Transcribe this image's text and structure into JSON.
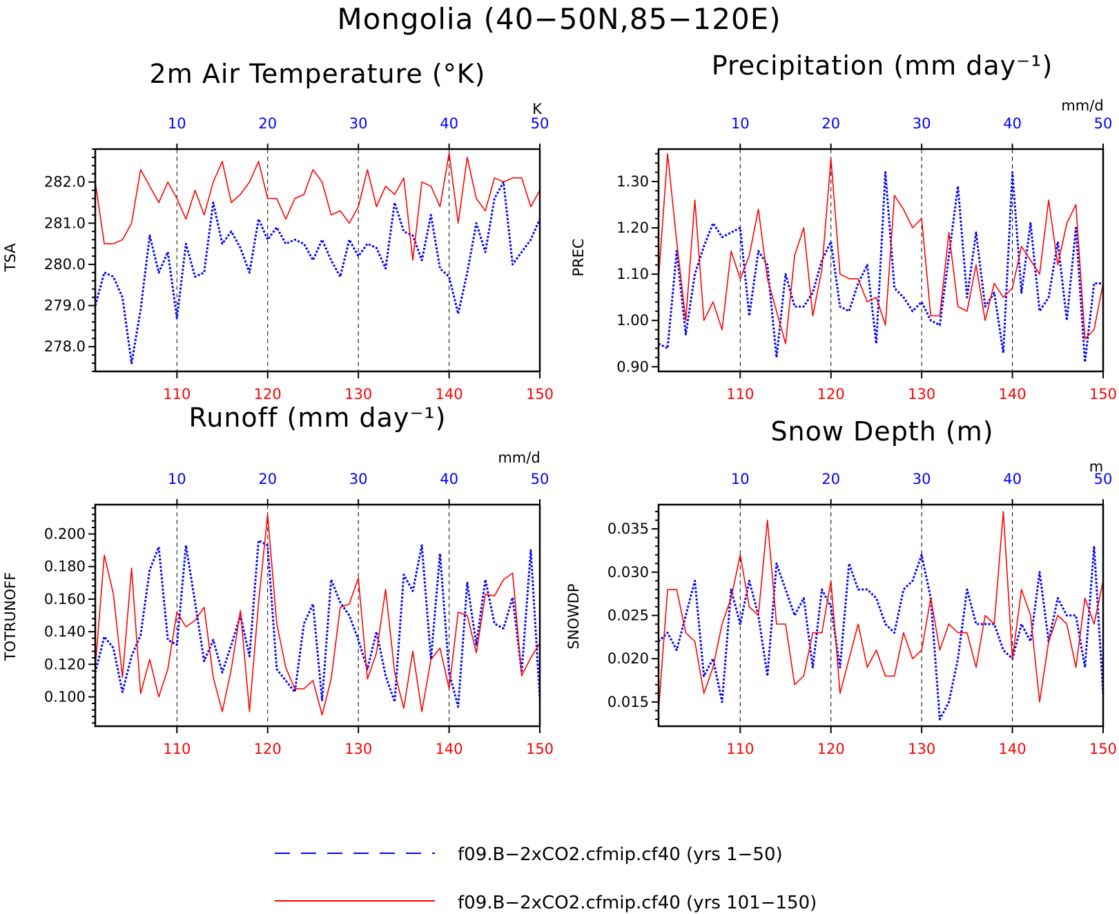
{
  "figure": {
    "title": "Mongolia (40−50N,85−120E)",
    "colors": {
      "red": "#ff0000",
      "blue": "#0000ff",
      "black": "#000000"
    }
  },
  "legend": [
    {
      "label": "f09.B−2xCO2.cfmip.cf40 (yrs 1−50)",
      "color": "#0000ff",
      "style": "dashed"
    },
    {
      "label": "f09.B−2xCO2.cfmip.cf40 (yrs 101−150)",
      "color": "#ff0000",
      "style": "solid"
    }
  ],
  "chart_data": [
    {
      "type": "line",
      "title": "2m Air Temperature (°K)",
      "ylabel": "TSA",
      "units": "K",
      "ylim": [
        277.4,
        282.8
      ],
      "yticks": [
        278,
        279,
        280,
        281,
        282
      ],
      "ytick_labels": [
        "278.0",
        "279.0",
        "280.0",
        "281.0",
        "282.0"
      ],
      "x_bottom": {
        "range": [
          101,
          150
        ],
        "ticks": [
          110,
          120,
          130,
          140,
          150
        ]
      },
      "x_top": {
        "range": [
          1,
          50
        ],
        "ticks": [
          10,
          20,
          30,
          40,
          50
        ]
      },
      "series": [
        {
          "color": "#0000ff",
          "dash": true,
          "values": [
            279.0,
            279.8,
            279.7,
            279.2,
            277.6,
            278.9,
            280.7,
            279.8,
            280.3,
            278.7,
            280.5,
            279.7,
            279.8,
            281.5,
            280.5,
            280.8,
            280.4,
            279.8,
            281.1,
            280.6,
            280.9,
            280.5,
            280.6,
            280.5,
            280.1,
            280.6,
            280.1,
            279.7,
            280.6,
            280.2,
            280.5,
            280.4,
            279.9,
            281.5,
            280.8,
            280.7,
            280.1,
            281.2,
            279.9,
            279.7,
            278.8,
            279.8,
            281.0,
            280.3,
            281.6,
            282.0,
            280.0,
            280.3,
            280.6,
            281.1
          ]
        },
        {
          "color": "#ff0000",
          "dash": false,
          "values": [
            282.0,
            280.5,
            280.5,
            280.6,
            281.0,
            282.3,
            281.9,
            281.5,
            282.0,
            281.6,
            281.1,
            281.8,
            281.2,
            282.0,
            282.5,
            281.5,
            281.7,
            282.0,
            282.5,
            281.6,
            281.6,
            281.1,
            281.6,
            281.7,
            282.3,
            282.0,
            281.2,
            281.3,
            281.0,
            281.4,
            282.3,
            281.4,
            281.9,
            281.7,
            282.1,
            280.1,
            282.0,
            281.9,
            281.4,
            282.7,
            281.0,
            282.6,
            281.6,
            281.3,
            282.1,
            282.0,
            282.1,
            282.1,
            281.4,
            281.8
          ]
        }
      ]
    },
    {
      "type": "line",
      "title": "Precipitation (mm day⁻¹)",
      "ylabel": "PREC",
      "units": "mm/d",
      "ylim": [
        0.89,
        1.37
      ],
      "yticks": [
        0.9,
        1.0,
        1.1,
        1.2,
        1.3
      ],
      "ytick_labels": [
        "0.90",
        "1.00",
        "1.10",
        "1.20",
        "1.30"
      ],
      "x_bottom": {
        "range": [
          101,
          150
        ],
        "ticks": [
          110,
          120,
          130,
          140,
          150
        ]
      },
      "x_top": {
        "range": [
          1,
          50
        ],
        "ticks": [
          10,
          20,
          30,
          40,
          50
        ]
      },
      "series": [
        {
          "color": "#0000ff",
          "dash": true,
          "values": [
            0.95,
            0.94,
            1.15,
            0.97,
            1.1,
            1.16,
            1.21,
            1.18,
            1.19,
            1.2,
            1.01,
            1.15,
            1.12,
            0.92,
            1.1,
            1.03,
            1.03,
            1.06,
            1.13,
            1.17,
            1.03,
            1.02,
            1.08,
            1.12,
            0.95,
            1.32,
            1.07,
            1.05,
            1.02,
            1.04,
            1.0,
            0.99,
            1.14,
            1.29,
            1.05,
            1.19,
            1.03,
            1.06,
            0.93,
            1.32,
            1.06,
            1.21,
            1.02,
            1.05,
            1.17,
            1.0,
            1.2,
            0.91,
            1.08,
            1.08
          ]
        },
        {
          "color": "#ff0000",
          "dash": false,
          "values": [
            1.09,
            1.36,
            1.17,
            1.0,
            1.26,
            1.0,
            1.04,
            0.98,
            1.15,
            1.09,
            1.14,
            1.24,
            1.09,
            1.02,
            0.95,
            1.14,
            1.2,
            1.01,
            1.11,
            1.35,
            1.1,
            1.09,
            1.09,
            1.04,
            1.05,
            0.99,
            1.27,
            1.24,
            1.2,
            1.22,
            1.01,
            1.01,
            1.19,
            1.03,
            1.02,
            1.12,
            1.0,
            1.08,
            1.05,
            1.07,
            1.16,
            1.13,
            1.1,
            1.26,
            1.12,
            1.21,
            1.25,
            0.96,
            0.98,
            1.08
          ]
        }
      ]
    },
    {
      "type": "line",
      "title": "Runoff (mm day⁻¹)",
      "ylabel": "TOTRUNOFF",
      "units": "mm/d",
      "ylim": [
        0.082,
        0.218
      ],
      "yticks": [
        0.1,
        0.12,
        0.14,
        0.16,
        0.18,
        0.2
      ],
      "ytick_labels": [
        "0.100",
        "0.120",
        "0.140",
        "0.160",
        "0.180",
        "0.200"
      ],
      "x_bottom": {
        "range": [
          101,
          150
        ],
        "ticks": [
          110,
          120,
          130,
          140,
          150
        ]
      },
      "x_top": {
        "range": [
          1,
          50
        ],
        "ticks": [
          10,
          20,
          30,
          40,
          50
        ]
      },
      "series": [
        {
          "color": "#0000ff",
          "dash": true,
          "values": [
            0.115,
            0.137,
            0.13,
            0.103,
            0.125,
            0.138,
            0.178,
            0.192,
            0.135,
            0.132,
            0.193,
            0.158,
            0.122,
            0.135,
            0.115,
            0.132,
            0.15,
            0.125,
            0.196,
            0.193,
            0.117,
            0.11,
            0.103,
            0.145,
            0.157,
            0.098,
            0.172,
            0.158,
            0.15,
            0.135,
            0.117,
            0.14,
            0.113,
            0.097,
            0.175,
            0.165,
            0.193,
            0.123,
            0.188,
            0.115,
            0.094,
            0.17,
            0.132,
            0.172,
            0.145,
            0.142,
            0.161,
            0.115,
            0.19,
            0.099
          ]
        },
        {
          "color": "#ff0000",
          "dash": false,
          "values": [
            0.118,
            0.187,
            0.163,
            0.112,
            0.179,
            0.102,
            0.123,
            0.1,
            0.117,
            0.152,
            0.143,
            0.147,
            0.155,
            0.112,
            0.091,
            0.117,
            0.153,
            0.091,
            0.158,
            0.212,
            0.145,
            0.118,
            0.105,
            0.105,
            0.11,
            0.089,
            0.111,
            0.155,
            0.157,
            0.173,
            0.111,
            0.127,
            0.166,
            0.115,
            0.093,
            0.128,
            0.091,
            0.123,
            0.13,
            0.105,
            0.152,
            0.15,
            0.127,
            0.163,
            0.162,
            0.172,
            0.176,
            0.113,
            0.124,
            0.133
          ]
        }
      ]
    },
    {
      "type": "line",
      "title": "Snow Depth (m)",
      "ylabel": "SNOWDP",
      "units": "m",
      "ylim": [
        0.0122,
        0.0378
      ],
      "yticks": [
        0.015,
        0.02,
        0.025,
        0.03,
        0.035
      ],
      "ytick_labels": [
        "0.015",
        "0.020",
        "0.025",
        "0.030",
        "0.035"
      ],
      "x_bottom": {
        "range": [
          101,
          150
        ],
        "ticks": [
          110,
          120,
          130,
          140,
          150
        ]
      },
      "x_top": {
        "range": [
          1,
          50
        ],
        "ticks": [
          10,
          20,
          30,
          40,
          50
        ]
      },
      "series": [
        {
          "color": "#0000ff",
          "dash": true,
          "values": [
            0.022,
            0.023,
            0.021,
            0.025,
            0.029,
            0.018,
            0.02,
            0.015,
            0.028,
            0.024,
            0.029,
            0.025,
            0.018,
            0.031,
            0.028,
            0.025,
            0.027,
            0.019,
            0.028,
            0.026,
            0.019,
            0.031,
            0.028,
            0.028,
            0.027,
            0.024,
            0.023,
            0.028,
            0.029,
            0.032,
            0.027,
            0.013,
            0.015,
            0.02,
            0.028,
            0.024,
            0.024,
            0.024,
            0.021,
            0.02,
            0.024,
            0.022,
            0.03,
            0.022,
            0.027,
            0.025,
            0.025,
            0.019,
            0.033,
            0.016
          ]
        },
        {
          "color": "#ff0000",
          "dash": false,
          "values": [
            0.014,
            0.028,
            0.028,
            0.023,
            0.022,
            0.016,
            0.019,
            0.024,
            0.027,
            0.032,
            0.026,
            0.025,
            0.036,
            0.024,
            0.024,
            0.017,
            0.018,
            0.023,
            0.023,
            0.029,
            0.016,
            0.02,
            0.024,
            0.019,
            0.021,
            0.018,
            0.018,
            0.023,
            0.02,
            0.021,
            0.027,
            0.021,
            0.024,
            0.023,
            0.023,
            0.019,
            0.025,
            0.024,
            0.037,
            0.02,
            0.028,
            0.025,
            0.015,
            0.022,
            0.025,
            0.024,
            0.019,
            0.027,
            0.024,
            0.029
          ]
        }
      ]
    }
  ]
}
